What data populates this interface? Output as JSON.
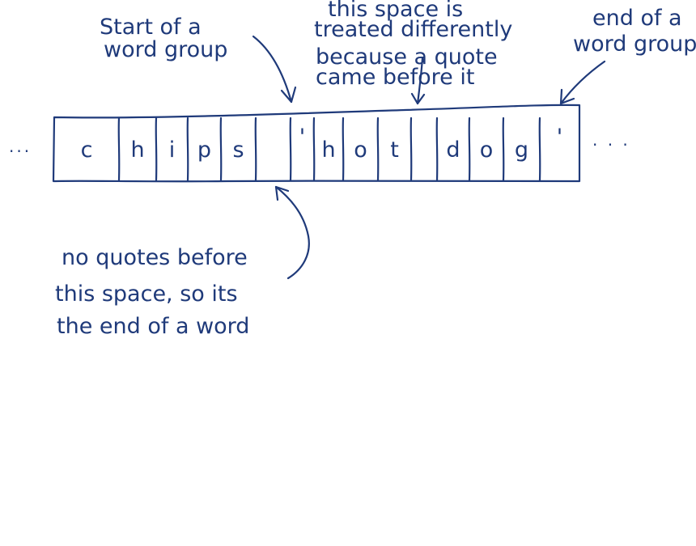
{
  "annotations": {
    "start_group": [
      "Start of a",
      "word group"
    ],
    "quote_space": [
      "this space is",
      "treated differently",
      "because a quote",
      "came before it"
    ],
    "end_group": [
      "end of a",
      "word group"
    ],
    "no_quotes": [
      "no quotes before",
      "this space, so its",
      "the end of a word"
    ]
  },
  "tape": {
    "cells": [
      "c",
      "h",
      "i",
      "p",
      "s",
      "",
      "'",
      "h",
      "o",
      "t",
      "",
      "d",
      "o",
      "g",
      "'"
    ],
    "left_ellipsis": "...",
    "right_ellipsis": ". . ."
  },
  "colors": {
    "ink": "#1f3a7a"
  }
}
